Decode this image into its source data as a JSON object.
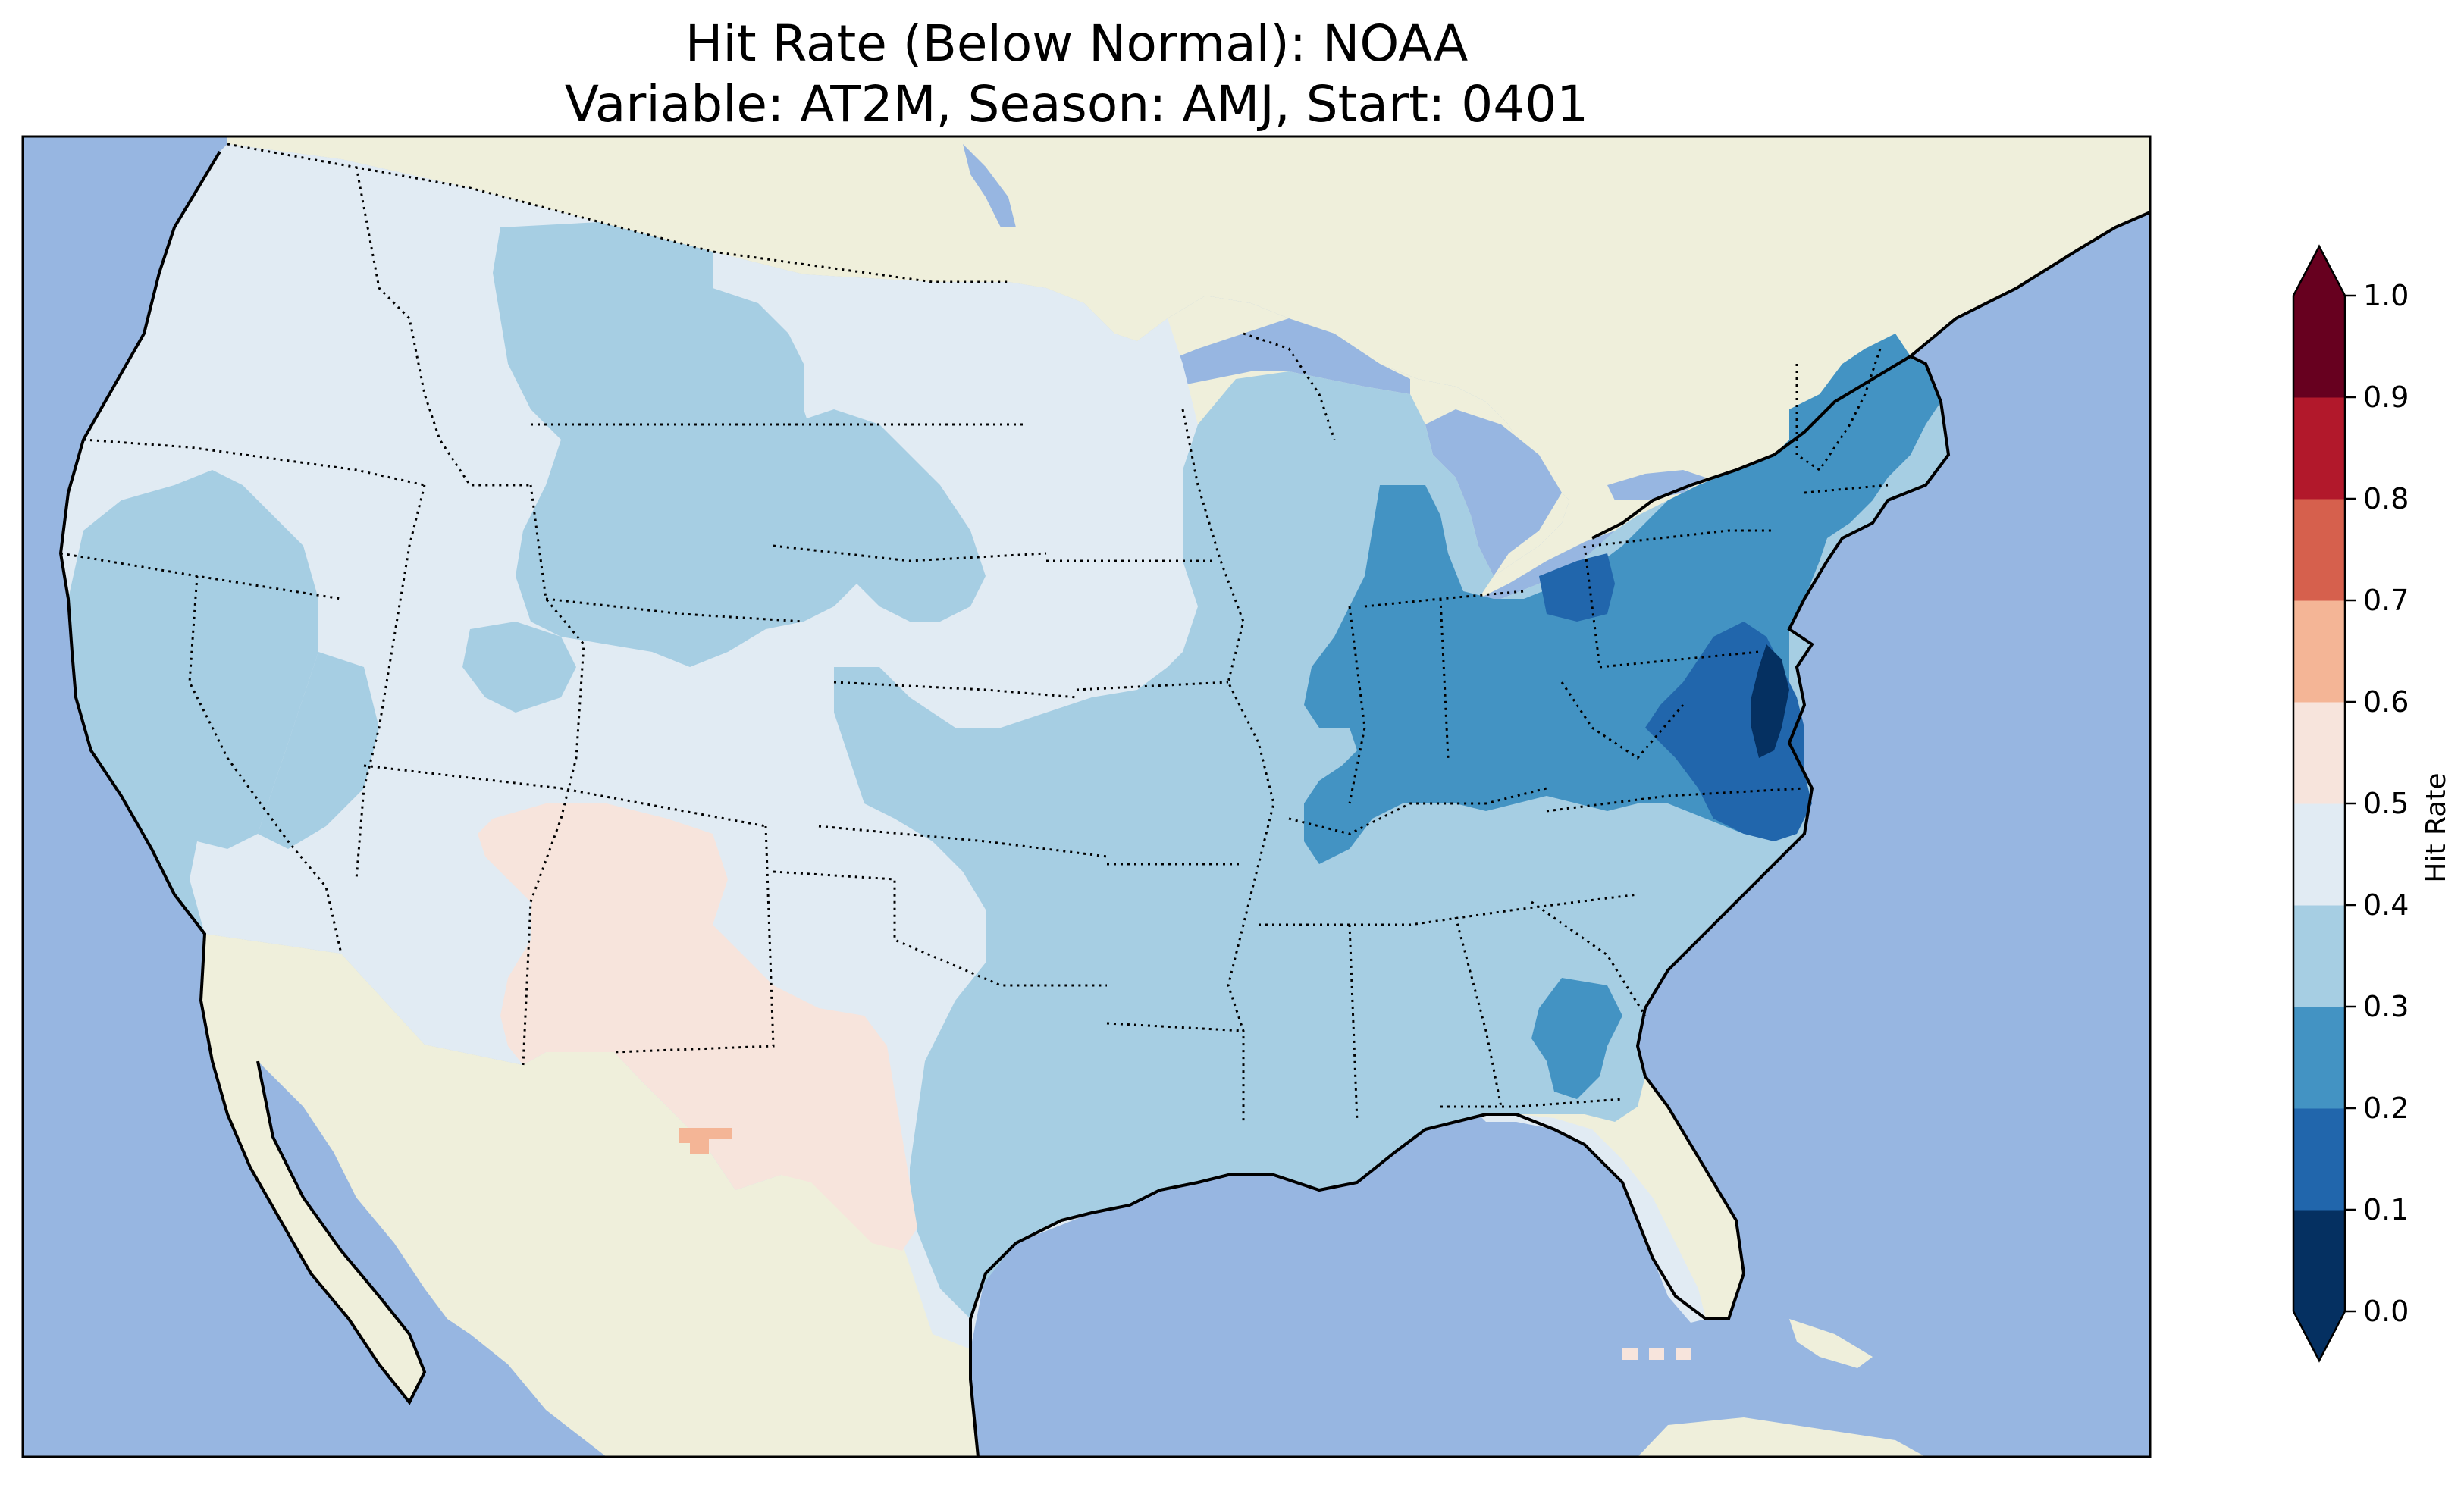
{
  "title": {
    "line1": "Hit Rate (Below Normal): NOAA",
    "line2": "Variable: AT2M, Season: AMJ, Start: 0401"
  },
  "colors": {
    "ocean": "#97b6e1",
    "land": "#efefdb",
    "lake": "#97b6e1",
    "coast": "#000000",
    "state_border": "#000000"
  },
  "colorbar": {
    "label": "Hit Rate",
    "ticks": [
      "0.0",
      "0.1",
      "0.2",
      "0.3",
      "0.4",
      "0.5",
      "0.6",
      "0.7",
      "0.8",
      "0.9",
      "1.0"
    ],
    "bins": [
      {
        "range": "0.0-0.1",
        "color": "#053061"
      },
      {
        "range": "0.1-0.2",
        "color": "#2166ac"
      },
      {
        "range": "0.2-0.3",
        "color": "#4393c3"
      },
      {
        "range": "0.3-0.4",
        "color": "#a6cee3"
      },
      {
        "range": "0.4-0.5",
        "color": "#e1ebf3"
      },
      {
        "range": "0.5-0.6",
        "color": "#f7e4dc"
      },
      {
        "range": "0.6-0.7",
        "color": "#f4b596"
      },
      {
        "range": "0.7-0.8",
        "color": "#d6604d"
      },
      {
        "range": "0.8-0.9",
        "color": "#b2182b"
      },
      {
        "range": "0.9-1.0",
        "color": "#67001f"
      }
    ],
    "extend": "both"
  },
  "regions": [
    {
      "name": "Pacific Northwest",
      "bin": "0.4-0.5"
    },
    {
      "name": "Northern Rockies / Plains",
      "bin": "0.3-0.4"
    },
    {
      "name": "Great Basin",
      "bin": "0.4-0.5"
    },
    {
      "name": "Four Corners / Southwest",
      "bin": "0.5-0.6"
    },
    {
      "name": "West Texas spot",
      "bin": "0.6-0.7"
    },
    {
      "name": "Ohio Valley / Great Lakes",
      "bin": "0.2-0.3"
    },
    {
      "name": "Mid-Atlantic",
      "bin": "0.1-0.2"
    },
    {
      "name": "Northeast",
      "bin": "0.2-0.3"
    },
    {
      "name": "Southeast",
      "bin": "0.3-0.4"
    }
  ]
}
